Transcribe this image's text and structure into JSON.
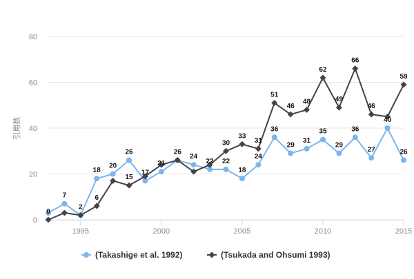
{
  "chart_data": {
    "type": "line",
    "title": "",
    "xlabel": "",
    "ylabel": "引用数",
    "xlim": [
      1993,
      2015
    ],
    "ylim": [
      0,
      80
    ],
    "xticks": [
      1995,
      2000,
      2005,
      2010,
      2015
    ],
    "yticks": [
      0,
      20,
      40,
      60,
      80
    ],
    "grid": "horizontal",
    "legend_position": "bottom",
    "x": [
      1993,
      1994,
      1995,
      1996,
      1997,
      1998,
      1999,
      2000,
      2001,
      2002,
      2003,
      2004,
      2005,
      2006,
      2007,
      2008,
      2009,
      2010,
      2011,
      2012,
      2013,
      2014,
      2015
    ],
    "series": [
      {
        "name": "(Takashige et al. 1992)",
        "color": "#7cb5ec",
        "marker": "circle",
        "values": [
          3,
          7,
          2,
          18,
          20,
          26,
          17,
          21,
          26,
          24,
          22,
          22,
          18,
          24,
          36,
          29,
          31,
          35,
          29,
          36,
          27,
          40,
          26
        ]
      },
      {
        "name": "(Tsukada and Ohsumi 1993)",
        "color": "#434348",
        "marker": "diamond",
        "values": [
          0,
          3,
          2,
          6,
          17,
          15,
          19,
          24,
          26,
          21,
          24,
          30,
          33,
          31,
          51,
          46,
          48,
          62,
          49,
          66,
          46,
          45,
          59
        ]
      }
    ],
    "data_labels": [
      {
        "x": 1993,
        "value": 0
      },
      {
        "x": 1994,
        "value": 7
      },
      {
        "x": 1995,
        "value": 2
      },
      {
        "x": 1996,
        "value": 18
      },
      {
        "x": 1996,
        "value": 6
      },
      {
        "x": 1997,
        "value": 20
      },
      {
        "x": 1998,
        "value": 26
      },
      {
        "x": 1998,
        "value": 15
      },
      {
        "x": 1999,
        "value": 17
      },
      {
        "x": 2000,
        "value": 21
      },
      {
        "x": 2001,
        "value": 26
      },
      {
        "x": 2002,
        "value": 24
      },
      {
        "x": 2003,
        "value": 22
      },
      {
        "x": 2004,
        "value": 30
      },
      {
        "x": 2004,
        "value": 22
      },
      {
        "x": 2005,
        "value": 33
      },
      {
        "x": 2005,
        "value": 18
      },
      {
        "x": 2006,
        "value": 31
      },
      {
        "x": 2006,
        "value": 24
      },
      {
        "x": 2007,
        "value": 51
      },
      {
        "x": 2007,
        "value": 36
      },
      {
        "x": 2008,
        "value": 46
      },
      {
        "x": 2008,
        "value": 29
      },
      {
        "x": 2009,
        "value": 48
      },
      {
        "x": 2009,
        "value": 31
      },
      {
        "x": 2010,
        "value": 62
      },
      {
        "x": 2010,
        "value": 35
      },
      {
        "x": 2011,
        "value": 49
      },
      {
        "x": 2011,
        "value": 29
      },
      {
        "x": 2012,
        "value": 66
      },
      {
        "x": 2012,
        "value": 36
      },
      {
        "x": 2013,
        "value": 46
      },
      {
        "x": 2013,
        "value": 27
      },
      {
        "x": 2014,
        "value": 40
      },
      {
        "x": 2015,
        "value": 59
      },
      {
        "x": 2015,
        "value": 26
      }
    ],
    "gridline_color": "#e6e6e6",
    "axis_color": "#ccd6eb"
  }
}
